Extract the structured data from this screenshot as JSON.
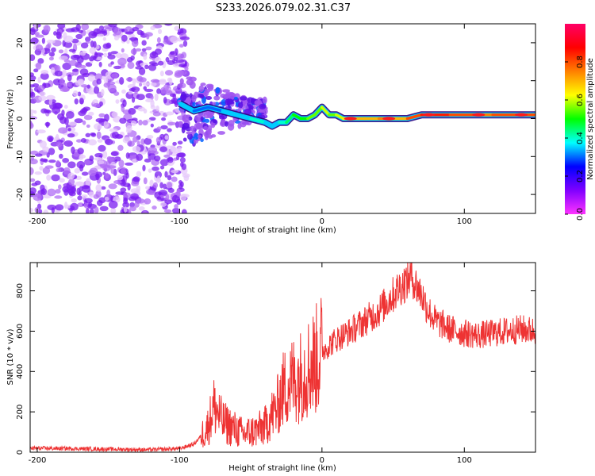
{
  "title": "S233.2026.079.02.31.C37",
  "chart_data": [
    {
      "type": "heatmap",
      "name": "spectrogram",
      "xlabel": "Height of straight line (km)",
      "ylabel": "Frequency (Hz)",
      "xlim": [
        -205,
        150
      ],
      "ylim": [
        -25,
        25
      ],
      "xticks": [
        -200,
        -100,
        0,
        100
      ],
      "yticks": [
        -20,
        -10,
        0,
        10,
        20
      ],
      "colorbar": {
        "label": "Normalized spectral amplitude",
        "range": [
          0.0,
          1.0
        ],
        "ticks": [
          0.0,
          0.2,
          0.4,
          0.6,
          0.8
        ],
        "colormap": [
          "#ff33ff",
          "#8000ff",
          "#0000ff",
          "#00ffff",
          "#00ff00",
          "#ffff00",
          "#ff8000",
          "#ff0000",
          "#ff0066"
        ]
      },
      "ridge": {
        "x": [
          -100,
          -90,
          -80,
          -70,
          -60,
          -50,
          -40,
          -35,
          -30,
          -25,
          -20,
          -15,
          -10,
          -5,
          0,
          5,
          10,
          15,
          20,
          30,
          40,
          50,
          60,
          70,
          80,
          90,
          100,
          110,
          120,
          130,
          140,
          150
        ],
        "freq": [
          4,
          2,
          3,
          2,
          1,
          0,
          -1,
          -2,
          -1,
          -1,
          1,
          0,
          0,
          1,
          3,
          1,
          1,
          0,
          0,
          0,
          0,
          0,
          0,
          1,
          1,
          1,
          1,
          1,
          1,
          1,
          1,
          1
        ],
        "amplitude": [
          0.35,
          0.3,
          0.3,
          0.35,
          0.35,
          0.4,
          0.35,
          0.35,
          0.4,
          0.45,
          0.5,
          0.5,
          0.55,
          0.55,
          0.6,
          0.55,
          0.6,
          0.65,
          0.7,
          0.7,
          0.75,
          0.7,
          0.8,
          0.85,
          0.85,
          0.8,
          0.8,
          0.75,
          0.8,
          0.8,
          0.8,
          0.8
        ]
      },
      "noise_region": {
        "x_range": [
          -205,
          -95
        ],
        "amplitude_range": [
          0.0,
          0.15
        ]
      }
    },
    {
      "type": "line",
      "name": "snr",
      "xlabel": "Height of straight line (km)",
      "ylabel": "SNR (10 * v/v)",
      "xlim": [
        -205,
        150
      ],
      "ylim": [
        0,
        940
      ],
      "xticks": [
        -200,
        -100,
        0,
        100
      ],
      "yticks": [
        0,
        200,
        400,
        600,
        800
      ],
      "color": "#ee3333",
      "series": [
        {
          "name": "SNR",
          "x": [
            -205,
            -180,
            -150,
            -120,
            -100,
            -90,
            -85,
            -80,
            -76,
            -72,
            -70,
            -65,
            -60,
            -55,
            -50,
            -45,
            -40,
            -36,
            -32,
            -30,
            -28,
            -25,
            -22,
            -20,
            -15,
            -10,
            -5,
            0,
            5,
            10,
            20,
            30,
            40,
            45,
            50,
            55,
            60,
            63,
            65,
            70,
            75,
            80,
            90,
            100,
            110,
            120,
            130,
            140,
            150
          ],
          "y": [
            20,
            18,
            15,
            12,
            18,
            40,
            80,
            130,
            230,
            180,
            150,
            130,
            110,
            90,
            100,
            110,
            130,
            180,
            210,
            260,
            300,
            330,
            350,
            360,
            380,
            420,
            450,
            500,
            530,
            560,
            600,
            650,
            700,
            740,
            780,
            820,
            850,
            880,
            840,
            780,
            700,
            650,
            610,
            590,
            580,
            590,
            600,
            610,
            600
          ]
        }
      ]
    }
  ]
}
